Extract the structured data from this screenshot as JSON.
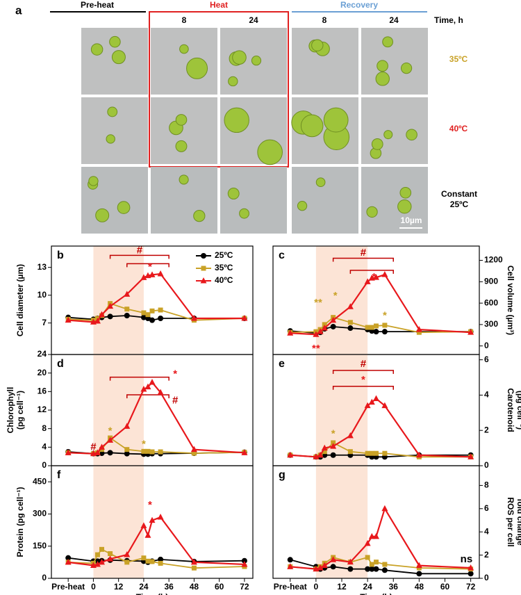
{
  "panel_a": {
    "label": "a",
    "phases": [
      "Pre-heat",
      "Heat",
      "Recovery"
    ],
    "time_header": "Time, h",
    "times": [
      "8",
      "24",
      "8",
      "24"
    ],
    "conditions": [
      "35ºC",
      "40ºC",
      "Constant 25ºC"
    ],
    "scale_bar": "10µm"
  },
  "chart_data": [
    {
      "type": "line",
      "label": "b",
      "ylabel": [
        "Cell diameter (µm)"
      ],
      "xlim": [
        -20,
        76
      ],
      "ylim": [
        3.6,
        15.3
      ],
      "yticks": [
        7,
        10,
        13
      ],
      "shade": [
        0,
        24
      ],
      "shade_color": "#fce4d6",
      "legend": "top-right",
      "x": [
        -12,
        0,
        2,
        4,
        8,
        16,
        24,
        26,
        28,
        32,
        48,
        72
      ],
      "series": [
        {
          "name": "25ºC",
          "color": "#000000",
          "marker": "circle",
          "values": [
            7.6,
            7.4,
            7.5,
            7.6,
            7.7,
            7.8,
            7.6,
            7.5,
            7.3,
            7.5,
            7.5,
            7.5
          ]
        },
        {
          "name": "35ºC",
          "color": "#c9a227",
          "marker": "square",
          "values": [
            7.4,
            7.3,
            7.5,
            7.8,
            9.1,
            8.5,
            8.1,
            7.9,
            8.3,
            8.4,
            7.3,
            7.5
          ]
        },
        {
          "name": "40ºC",
          "color": "#e8181c",
          "marker": "triangle",
          "values": [
            7.3,
            7.1,
            7.2,
            7.9,
            8.8,
            10.1,
            11.9,
            12.1,
            12.2,
            12.3,
            7.5,
            7.5
          ]
        }
      ],
      "annotations": [
        {
          "text": "#",
          "color": "#c00000"
        },
        {
          "text": "*",
          "color": "#e8181c"
        }
      ]
    },
    {
      "type": "line",
      "label": "c",
      "ylabel": [
        "Cell volume (µm³)"
      ],
      "y_axis_side": "right",
      "xlim": [
        -20,
        76
      ],
      "ylim": [
        -120,
        1400
      ],
      "yticks": [
        0,
        300,
        600,
        900,
        1200
      ],
      "shade": [
        0,
        24
      ],
      "shade_color": "#fce4d6",
      "x": [
        -12,
        0,
        2,
        4,
        8,
        16,
        24,
        26,
        28,
        32,
        48,
        72
      ],
      "series": [
        {
          "color": "#000000",
          "marker": "circle",
          "values": [
            210,
            180,
            190,
            240,
            270,
            250,
            230,
            210,
            200,
            200,
            200,
            200
          ]
        },
        {
          "color": "#c9a227",
          "marker": "square",
          "values": [
            190,
            200,
            230,
            300,
            400,
            330,
            260,
            260,
            280,
            290,
            190,
            200
          ]
        },
        {
          "color": "#e8181c",
          "marker": "triangle",
          "values": [
            180,
            160,
            200,
            250,
            360,
            550,
            900,
            950,
            960,
            1000,
            230,
            190
          ]
        }
      ],
      "annotations": [
        {
          "text": "#",
          "color": "#c00000"
        },
        {
          "text": "*",
          "color": "#e8181c"
        },
        {
          "text": "**",
          "color": "#c9a227"
        },
        {
          "text": "*",
          "color": "#c9a227"
        },
        {
          "text": "*",
          "color": "#c9a227"
        },
        {
          "text": "**",
          "color": "#e8181c"
        }
      ]
    },
    {
      "type": "line",
      "label": "d",
      "ylabel": [
        "Chlorophyll",
        "(pg cell⁻¹)"
      ],
      "xlim": [
        -20,
        76
      ],
      "ylim": [
        0,
        24
      ],
      "yticks": [
        0,
        4,
        8,
        12,
        16,
        20,
        24
      ],
      "shade": [
        0,
        24
      ],
      "shade_color": "#fce4d6",
      "x": [
        -12,
        0,
        2,
        4,
        8,
        16,
        24,
        26,
        28,
        32,
        48,
        72
      ],
      "series": [
        {
          "color": "#000000",
          "marker": "circle",
          "values": [
            3.0,
            2.6,
            2.6,
            2.7,
            2.8,
            2.6,
            2.5,
            2.5,
            2.6,
            2.6,
            2.7,
            2.9
          ]
        },
        {
          "color": "#c9a227",
          "marker": "square",
          "values": [
            2.8,
            2.6,
            2.8,
            3.5,
            6.0,
            3.5,
            3.1,
            3.1,
            3.0,
            3.0,
            2.7,
            2.9
          ]
        },
        {
          "color": "#e8181c",
          "marker": "triangle",
          "values": [
            2.8,
            2.6,
            2.8,
            4.0,
            5.5,
            8.5,
            16.5,
            17.0,
            18.0,
            15.8,
            3.5,
            2.8
          ]
        }
      ],
      "annotations": [
        {
          "text": "*",
          "color": "#e8181c"
        },
        {
          "text": "#",
          "color": "#c00000"
        },
        {
          "text": "*",
          "color": "#c9a227"
        },
        {
          "text": "*",
          "color": "#c9a227"
        },
        {
          "text": "#",
          "color": "#c00000"
        }
      ]
    },
    {
      "type": "line",
      "label": "e",
      "ylabel": [
        "Carotenoid",
        "(pg cell⁻¹)"
      ],
      "y_axis_side": "right",
      "xlim": [
        -20,
        76
      ],
      "ylim": [
        0,
        6.3
      ],
      "yticks": [
        0,
        2,
        4,
        6
      ],
      "shade": [
        0,
        24
      ],
      "shade_color": "#fce4d6",
      "x": [
        -12,
        0,
        2,
        4,
        8,
        16,
        24,
        26,
        28,
        32,
        48,
        72
      ],
      "series": [
        {
          "color": "#000000",
          "marker": "circle",
          "values": [
            0.6,
            0.5,
            0.5,
            0.6,
            0.6,
            0.6,
            0.6,
            0.5,
            0.5,
            0.5,
            0.6,
            0.6
          ]
        },
        {
          "color": "#c9a227",
          "marker": "square",
          "values": [
            0.6,
            0.5,
            0.6,
            0.8,
            1.3,
            0.8,
            0.7,
            0.7,
            0.7,
            0.7,
            0.5,
            0.5
          ]
        },
        {
          "color": "#e8181c",
          "marker": "triangle",
          "values": [
            0.6,
            0.5,
            0.6,
            1.0,
            1.1,
            1.7,
            3.4,
            3.6,
            3.8,
            3.4,
            0.6,
            0.5
          ]
        }
      ],
      "annotations": [
        {
          "text": "#",
          "color": "#c00000"
        },
        {
          "text": "*",
          "color": "#e8181c"
        },
        {
          "text": "*",
          "color": "#c9a227"
        }
      ]
    },
    {
      "type": "line",
      "label": "f",
      "ylabel": [
        "Protein (pg cell⁻¹)"
      ],
      "xlabel": "Time (h)",
      "xlim": [
        -20,
        76
      ],
      "ylim": [
        0,
        525
      ],
      "yticks": [
        0,
        150,
        300,
        450
      ],
      "shade": [
        0,
        24
      ],
      "shade_color": "#fce4d6",
      "xticks": [
        {
          "value": -12,
          "label": "Pre-heat"
        },
        0,
        12,
        24,
        36,
        48,
        60,
        72
      ],
      "x": [
        -12,
        0,
        2,
        4,
        8,
        16,
        24,
        26,
        28,
        32,
        48,
        72
      ],
      "series": [
        {
          "color": "#000000",
          "marker": "circle",
          "values": [
            95,
            80,
            80,
            82,
            85,
            82,
            80,
            75,
            80,
            88,
            78,
            82
          ]
        },
        {
          "color": "#c9a227",
          "marker": "square",
          "values": [
            75,
            70,
            110,
            135,
            115,
            75,
            95,
            80,
            78,
            70,
            48,
            55
          ]
        },
        {
          "color": "#e8181c",
          "marker": "triangle",
          "values": [
            75,
            60,
            65,
            75,
            90,
            110,
            245,
            200,
            270,
            285,
            75,
            65
          ]
        }
      ],
      "annotations": [
        {
          "text": "*",
          "color": "#e8181c"
        }
      ]
    },
    {
      "type": "line",
      "label": "g",
      "ylabel": [
        "ROS per cell",
        "fold change"
      ],
      "xlabel": "Time (h)",
      "y_axis_side": "right",
      "xlim": [
        -20,
        76
      ],
      "ylim": [
        0,
        9.7
      ],
      "yticks": [
        0,
        2,
        4,
        6,
        8
      ],
      "shade": [
        0,
        24
      ],
      "shade_color": "#fce4d6",
      "xticks": [
        {
          "value": -12,
          "label": "Pre-heat"
        },
        0,
        12,
        24,
        36,
        48,
        60,
        72
      ],
      "x": [
        -12,
        0,
        2,
        4,
        8,
        16,
        24,
        26,
        28,
        32,
        48,
        72
      ],
      "series": [
        {
          "color": "#000000",
          "marker": "circle",
          "values": [
            1.6,
            1.0,
            0.8,
            0.9,
            1.0,
            0.8,
            0.8,
            0.8,
            0.8,
            0.7,
            0.4,
            0.4
          ]
        },
        {
          "color": "#c9a227",
          "marker": "square",
          "values": [
            1.0,
            0.8,
            1.0,
            1.3,
            1.8,
            1.4,
            1.8,
            1.2,
            1.4,
            1.2,
            0.9,
            0.8
          ]
        },
        {
          "color": "#e8181c",
          "marker": "triangle",
          "values": [
            1.0,
            0.8,
            0.9,
            1.1,
            1.6,
            1.4,
            3.0,
            3.6,
            3.6,
            6.0,
            1.1,
            0.9
          ]
        }
      ],
      "annotations": [
        {
          "text": "ns",
          "color": "#000000"
        }
      ]
    }
  ]
}
